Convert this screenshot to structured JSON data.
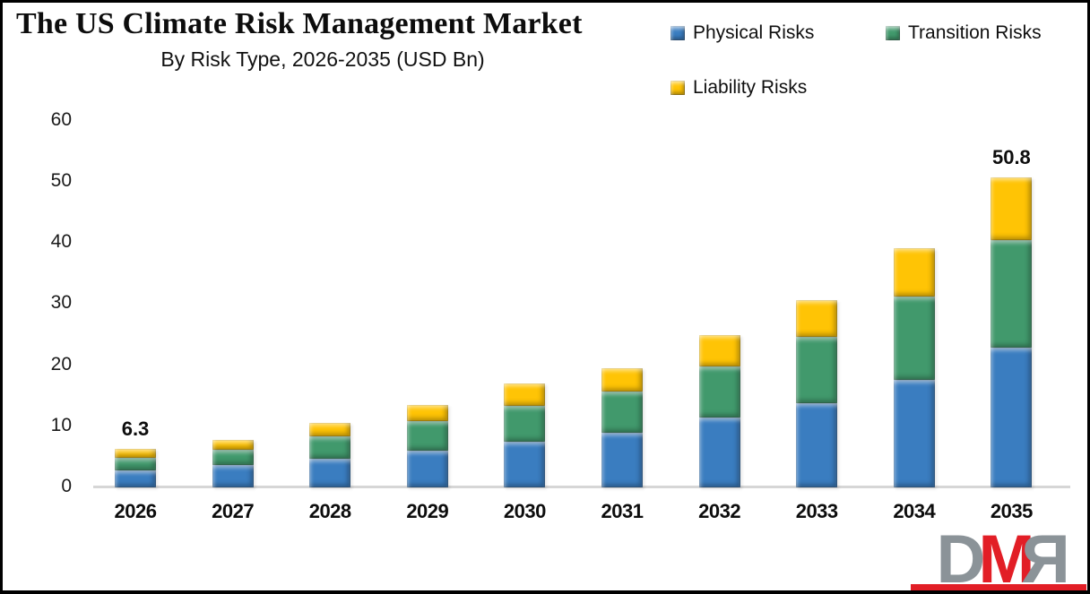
{
  "title": "The US Climate Risk Management Market",
  "subtitle": "By Risk Type, 2026-2035 (USD Bn)",
  "chart_data": {
    "type": "bar",
    "stacked": true,
    "title": "The US Climate Risk Management Market",
    "subtitle": "By Risk Type, 2026-2035 (USD Bn)",
    "unit": "USD Bn",
    "grid": false,
    "legend_position": "top-right",
    "categories": [
      "2026",
      "2027",
      "2028",
      "2029",
      "2030",
      "2031",
      "2032",
      "2033",
      "2034",
      "2035"
    ],
    "series": [
      {
        "name": "Physical Risks",
        "color": "#3A7DC0",
        "values": [
          2.8,
          3.6,
          4.7,
          6.0,
          7.5,
          9.0,
          11.4,
          13.8,
          17.6,
          22.9
        ]
      },
      {
        "name": "Transition Risks",
        "color": "#41996C",
        "values": [
          2.1,
          2.6,
          3.6,
          4.8,
          5.9,
          6.7,
          8.4,
          10.8,
          13.7,
          17.6
        ]
      },
      {
        "name": "Liability Risks",
        "color": "#FFC405",
        "values": [
          1.4,
          1.6,
          2.3,
          2.7,
          3.6,
          3.8,
          5.2,
          6.1,
          7.8,
          10.3
        ]
      }
    ],
    "totals": [
      6.3,
      7.8,
      10.6,
      13.5,
      17.0,
      19.5,
      25.0,
      30.7,
      39.1,
      50.8
    ],
    "value_labels": [
      {
        "category": "2026",
        "text": "6.3"
      },
      {
        "category": "2035",
        "text": "50.8"
      }
    ],
    "yticks": [
      0,
      10,
      20,
      30,
      40,
      50,
      60
    ],
    "ylim": [
      0,
      60
    ],
    "xlabel": "",
    "ylabel": ""
  },
  "colors": {
    "axis_line": "#d6d6d6",
    "text": "#0d0d0d",
    "frame_border": "#000000"
  },
  "watermark": {
    "letters": [
      {
        "char": "D",
        "color": "#8B9398",
        "mirrored": false
      },
      {
        "char": "M",
        "color": "#E21E26",
        "mirrored": false
      },
      {
        "char": "R",
        "color": "#8B9398",
        "mirrored": true
      }
    ],
    "bar_color": "#E21E26"
  }
}
